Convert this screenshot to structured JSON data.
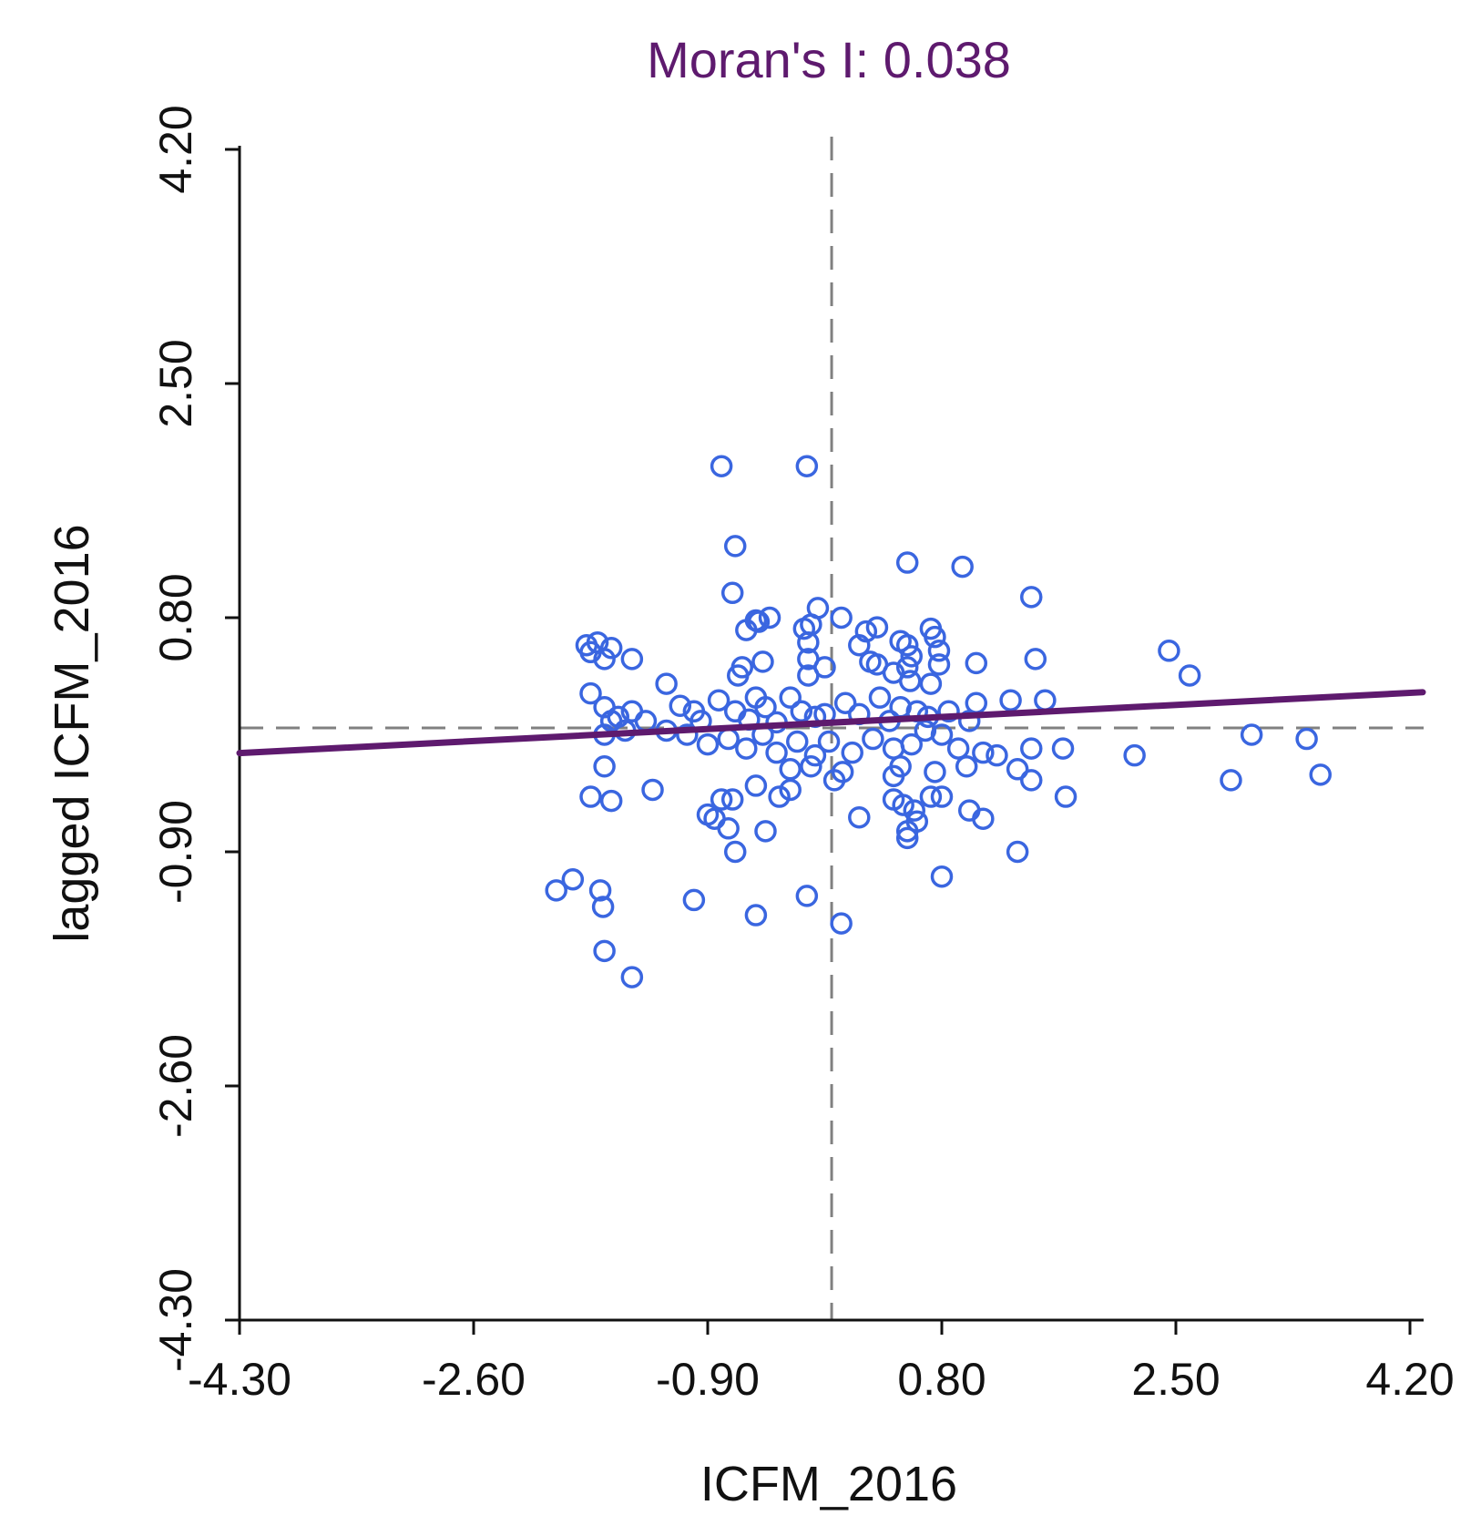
{
  "chart_data": {
    "type": "scatter",
    "title": "Moran's I: 0.038",
    "xlabel": "ICFM_2016",
    "ylabel": "lagged ICFM_2016",
    "xlim": [
      -4.3,
      4.2
    ],
    "ylim": [
      -4.3,
      4.2
    ],
    "x_ticks": [
      "-4.30",
      "-2.60",
      "-0.90",
      "0.80",
      "2.50",
      "4.20"
    ],
    "y_ticks": [
      "-4.30",
      "-2.60",
      "-0.90",
      "0.80",
      "2.50",
      "4.20"
    ],
    "x_tick_values": [
      -4.3,
      -2.6,
      -0.9,
      0.8,
      2.5,
      4.2
    ],
    "y_tick_values": [
      -4.3,
      -2.6,
      -0.9,
      0.8,
      2.5,
      4.2
    ],
    "mean_x": 0.0,
    "mean_y": 0.0,
    "regression": {
      "slope": 0.038,
      "intercept": 0.0
    },
    "colors": {
      "points": "#3a66e0",
      "regression": "#5e1a6e",
      "title": "#5e1a6e",
      "mean_lines": "#808080"
    },
    "points": [
      [
        -0.8,
        1.9
      ],
      [
        -0.18,
        1.9
      ],
      [
        -0.7,
        1.32
      ],
      [
        0.55,
        1.2
      ],
      [
        0.95,
        1.17
      ],
      [
        -0.72,
        0.98
      ],
      [
        1.45,
        0.95
      ],
      [
        -0.1,
        0.87
      ],
      [
        0.07,
        0.8
      ],
      [
        -0.55,
        0.78
      ],
      [
        -0.45,
        0.8
      ],
      [
        -0.53,
        0.77
      ],
      [
        -0.62,
        0.71
      ],
      [
        -0.2,
        0.72
      ],
      [
        -0.15,
        0.75
      ],
      [
        0.25,
        0.7
      ],
      [
        0.33,
        0.73
      ],
      [
        0.72,
        0.72
      ],
      [
        0.75,
        0.66
      ],
      [
        0.5,
        0.63
      ],
      [
        0.55,
        0.6
      ],
      [
        0.2,
        0.6
      ],
      [
        -0.17,
        0.62
      ],
      [
        0.78,
        0.56
      ],
      [
        0.58,
        0.52
      ],
      [
        -0.05,
        0.44
      ],
      [
        0.28,
        0.48
      ],
      [
        0.33,
        0.46
      ],
      [
        0.55,
        0.44
      ],
      [
        -0.17,
        0.5
      ],
      [
        -0.5,
        0.48
      ],
      [
        -0.65,
        0.44
      ],
      [
        -0.68,
        0.38
      ],
      [
        -0.17,
        0.38
      ],
      [
        0.45,
        0.4
      ],
      [
        0.57,
        0.34
      ],
      [
        0.72,
        0.32
      ],
      [
        0.78,
        0.46
      ],
      [
        1.05,
        0.47
      ],
      [
        1.48,
        0.5
      ],
      [
        2.45,
        0.56
      ],
      [
        2.6,
        0.38
      ],
      [
        -1.6,
        0.58
      ],
      [
        -1.7,
        0.62
      ],
      [
        -1.75,
        0.55
      ],
      [
        -1.78,
        0.6
      ],
      [
        -1.65,
        0.5
      ],
      [
        -1.45,
        0.5
      ],
      [
        -1.75,
        0.25
      ],
      [
        -1.65,
        0.15
      ],
      [
        -1.6,
        0.05
      ],
      [
        -1.55,
        0.08
      ],
      [
        -1.45,
        0.12
      ],
      [
        -1.35,
        0.05
      ],
      [
        -1.2,
        0.32
      ],
      [
        -1.1,
        0.16
      ],
      [
        -1.0,
        0.12
      ],
      [
        -0.95,
        0.05
      ],
      [
        -0.82,
        0.2
      ],
      [
        -0.7,
        0.12
      ],
      [
        -0.6,
        0.06
      ],
      [
        -0.55,
        0.22
      ],
      [
        -0.48,
        0.15
      ],
      [
        -0.4,
        0.04
      ],
      [
        -0.3,
        0.22
      ],
      [
        -0.22,
        0.12
      ],
      [
        -0.12,
        0.08
      ],
      [
        -0.05,
        0.1
      ],
      [
        0.1,
        0.18
      ],
      [
        0.2,
        0.1
      ],
      [
        0.35,
        0.22
      ],
      [
        0.42,
        0.05
      ],
      [
        0.5,
        0.15
      ],
      [
        0.62,
        0.12
      ],
      [
        0.7,
        0.08
      ],
      [
        0.85,
        0.12
      ],
      [
        1.0,
        0.05
      ],
      [
        1.05,
        0.18
      ],
      [
        1.3,
        0.2
      ],
      [
        1.55,
        0.2
      ],
      [
        -1.65,
        -0.05
      ],
      [
        -1.5,
        -0.02
      ],
      [
        -1.2,
        -0.02
      ],
      [
        -1.05,
        -0.05
      ],
      [
        -0.9,
        -0.12
      ],
      [
        -0.75,
        -0.08
      ],
      [
        -0.62,
        -0.15
      ],
      [
        -0.5,
        -0.05
      ],
      [
        -0.4,
        -0.18
      ],
      [
        -0.25,
        -0.1
      ],
      [
        -0.12,
        -0.2
      ],
      [
        -0.02,
        -0.1
      ],
      [
        0.15,
        -0.18
      ],
      [
        0.3,
        -0.08
      ],
      [
        0.45,
        -0.15
      ],
      [
        0.58,
        -0.12
      ],
      [
        0.68,
        -0.02
      ],
      [
        0.8,
        -0.05
      ],
      [
        0.92,
        -0.15
      ],
      [
        1.1,
        -0.18
      ],
      [
        1.2,
        -0.2
      ],
      [
        1.45,
        -0.15
      ],
      [
        1.68,
        -0.15
      ],
      [
        2.2,
        -0.2
      ],
      [
        3.05,
        -0.05
      ],
      [
        3.45,
        -0.08
      ],
      [
        -1.65,
        -0.28
      ],
      [
        -0.3,
        -0.3
      ],
      [
        -0.15,
        -0.28
      ],
      [
        0.02,
        -0.38
      ],
      [
        0.08,
        -0.32
      ],
      [
        0.45,
        -0.35
      ],
      [
        0.5,
        -0.28
      ],
      [
        0.75,
        -0.32
      ],
      [
        0.98,
        -0.28
      ],
      [
        1.35,
        -0.3
      ],
      [
        1.45,
        -0.38
      ],
      [
        2.9,
        -0.38
      ],
      [
        3.55,
        -0.34
      ],
      [
        -1.75,
        -0.5
      ],
      [
        -1.6,
        -0.53
      ],
      [
        -1.3,
        -0.45
      ],
      [
        -0.9,
        -0.63
      ],
      [
        -0.85,
        -0.66
      ],
      [
        -0.8,
        -0.52
      ],
      [
        -0.72,
        -0.52
      ],
      [
        -0.55,
        -0.42
      ],
      [
        -0.38,
        -0.5
      ],
      [
        -0.3,
        -0.45
      ],
      [
        0.2,
        -0.65
      ],
      [
        0.45,
        -0.52
      ],
      [
        0.52,
        -0.56
      ],
      [
        0.6,
        -0.6
      ],
      [
        0.62,
        -0.68
      ],
      [
        0.72,
        -0.5
      ],
      [
        0.8,
        -0.5
      ],
      [
        1.0,
        -0.6
      ],
      [
        1.1,
        -0.66
      ],
      [
        1.7,
        -0.5
      ],
      [
        -0.75,
        -0.73
      ],
      [
        -0.48,
        -0.75
      ],
      [
        -0.7,
        -0.9
      ],
      [
        0.55,
        -0.75
      ],
      [
        0.55,
        -0.8
      ],
      [
        -1.0,
        -1.25
      ],
      [
        -1.88,
        -1.1
      ],
      [
        -2.0,
        -1.18
      ],
      [
        -1.68,
        -1.18
      ],
      [
        -1.66,
        -1.3
      ],
      [
        -0.55,
        -1.36
      ],
      [
        -0.18,
        -1.22
      ],
      [
        0.07,
        -1.42
      ],
      [
        0.8,
        -1.08
      ],
      [
        1.35,
        -0.9
      ],
      [
        -1.65,
        -1.62
      ],
      [
        -1.45,
        -1.81
      ]
    ]
  }
}
